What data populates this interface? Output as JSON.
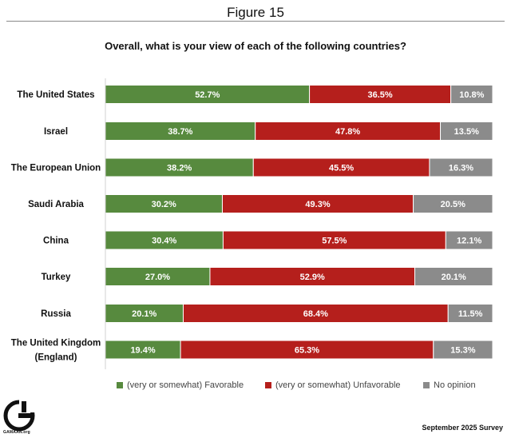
{
  "figure_label": "Figure 15",
  "logo": {
    "text": "GAMAAN.org"
  },
  "footnote": "September 2025 Survey",
  "colors": {
    "favorable": "#578a3e",
    "unfavorable": "#b51f1c",
    "no_opinion": "#8b8b8b"
  },
  "chart_data": {
    "type": "bar",
    "orientation": "horizontal",
    "stacked": true,
    "title": "Overall, what is your view of each of the following countries?",
    "xlim": [
      0,
      100
    ],
    "grid": false,
    "legend_position": "bottom",
    "categories": [
      [
        "The United States"
      ],
      [
        "Israel"
      ],
      [
        "The European Union"
      ],
      [
        "Saudi Arabia"
      ],
      [
        "China"
      ],
      [
        "Turkey"
      ],
      [
        "Russia"
      ],
      [
        "The United Kingdom",
        "(England)"
      ]
    ],
    "series": [
      {
        "name": "(very or somewhat) Favorable",
        "color": "#578a3e",
        "values": [
          52.7,
          38.7,
          38.2,
          30.2,
          30.4,
          27.0,
          20.1,
          19.4
        ],
        "labels": [
          "52.7%",
          "38.7%",
          "38.2%",
          "30.2%",
          "30.4%",
          "27.0%",
          "20.1%",
          "19.4%"
        ]
      },
      {
        "name": "(very or somewhat) Unfavorable",
        "color": "#b51f1c",
        "values": [
          36.5,
          47.8,
          45.5,
          49.3,
          57.5,
          52.9,
          68.4,
          65.3
        ],
        "labels": [
          "36.5%",
          "47.8%",
          "45.5%",
          "49.3%",
          "57.5%",
          "52.9%",
          "68.4%",
          "65.3%"
        ]
      },
      {
        "name": "No opinion",
        "color": "#8b8b8b",
        "values": [
          10.8,
          13.5,
          16.3,
          20.5,
          12.1,
          20.1,
          11.5,
          15.3
        ],
        "labels": [
          "10.8%",
          "13.5%",
          "16.3%",
          "20.5%",
          "12.1%",
          "20.1%",
          "11.5%",
          "15.3%"
        ]
      }
    ]
  }
}
